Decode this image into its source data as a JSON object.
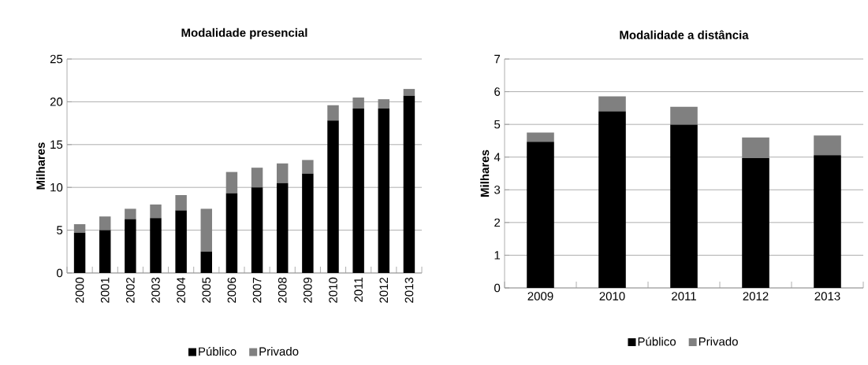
{
  "chart_data": [
    {
      "type": "bar",
      "stacked": true,
      "title": "Modalidade presencial",
      "ylabel": "Milhares",
      "categories": [
        "2000",
        "2001",
        "2002",
        "2003",
        "2004",
        "2005",
        "2006",
        "2007",
        "2008",
        "2009",
        "2010",
        "2011",
        "2012",
        "2013"
      ],
      "series": [
        {
          "name": "Público",
          "color": "#000000",
          "values": [
            4.7,
            5.0,
            6.3,
            6.4,
            7.3,
            2.5,
            9.3,
            10.0,
            10.5,
            11.6,
            17.8,
            19.2,
            19.2,
            20.7
          ]
        },
        {
          "name": "Privado",
          "color": "#808080",
          "values": [
            1.0,
            1.6,
            1.2,
            1.6,
            1.8,
            5.0,
            2.5,
            2.3,
            2.3,
            1.6,
            1.8,
            1.3,
            1.1,
            0.8
          ]
        }
      ],
      "ylim": [
        0,
        25
      ],
      "yticks": [
        0,
        5,
        10,
        15,
        20,
        25
      ],
      "grid": "y",
      "legend": "bottom"
    },
    {
      "type": "bar",
      "stacked": true,
      "title": "Modalidade a distância",
      "ylabel": "Milhares",
      "categories": [
        "2009",
        "2010",
        "2011",
        "2012",
        "2013"
      ],
      "series": [
        {
          "name": "Público",
          "color": "#000000",
          "values": [
            4.47,
            5.4,
            4.99,
            3.97,
            4.06
          ]
        },
        {
          "name": "Privado",
          "color": "#808080",
          "values": [
            0.28,
            0.46,
            0.55,
            0.63,
            0.6
          ]
        }
      ],
      "ylim": [
        0,
        7
      ],
      "yticks": [
        0,
        1,
        2,
        3,
        4,
        5,
        6,
        7
      ],
      "grid": "y",
      "legend": "bottom"
    }
  ]
}
